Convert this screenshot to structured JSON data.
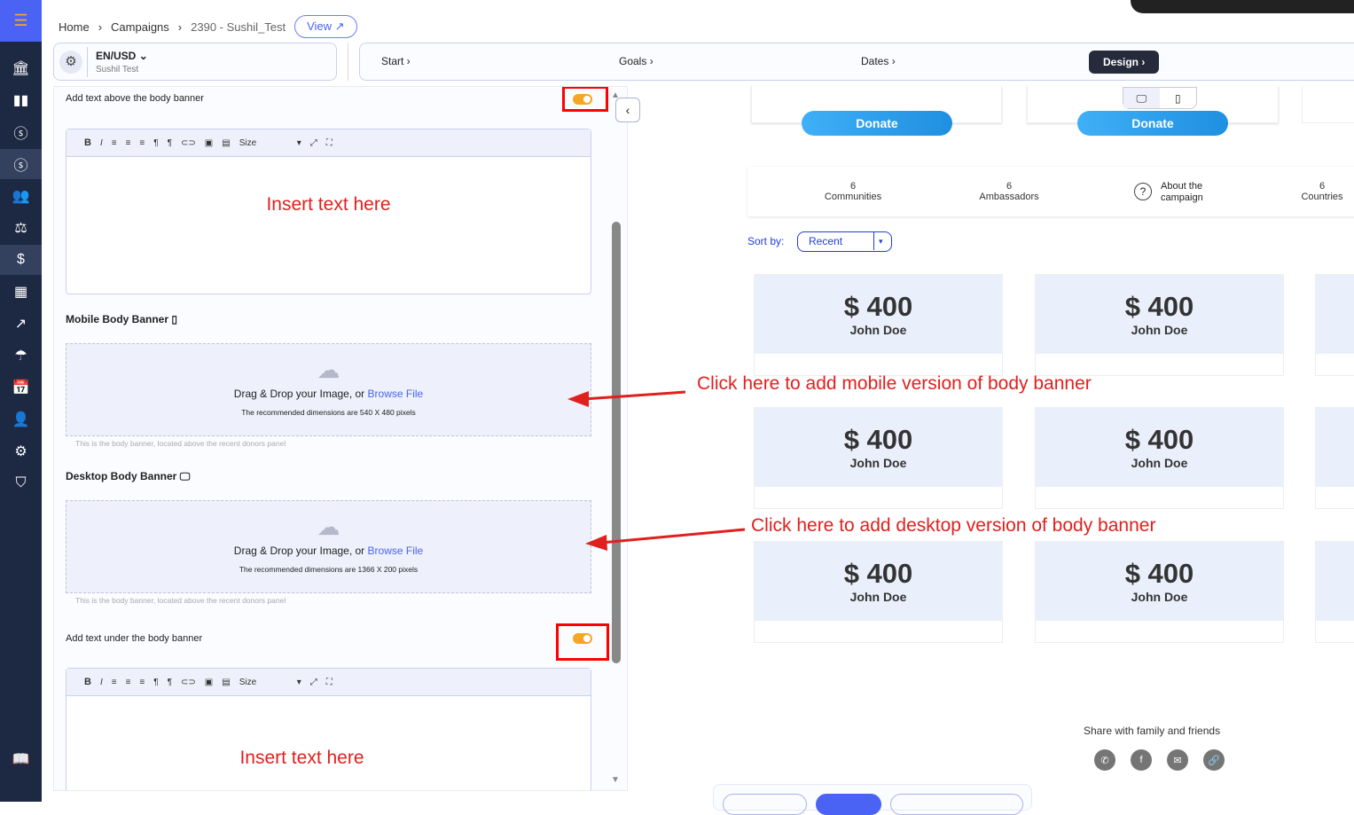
{
  "sidebar": {
    "items": [
      "bank-icon",
      "chart-icon",
      "dollar-circle-icon",
      "dollar-circle-icon",
      "users-icon",
      "scale-icon",
      "dollar-icon",
      "grid-icon",
      "arrow-icon",
      "umbrella-icon",
      "calendar-icon",
      "user-icon",
      "gear-icon",
      "plug-icon"
    ],
    "bottom": "book-icon"
  },
  "breadcrumb": {
    "home": "Home",
    "campaigns": "Campaigns",
    "campaign": "2390  -  Sushil_Test",
    "view": "View"
  },
  "lang": {
    "value": "EN/USD",
    "org": "Sushil Test"
  },
  "steps": [
    "Start",
    "Goals",
    "Dates",
    "Design"
  ],
  "panel": {
    "above_label": "Add text above the body banner",
    "under_label": "Add text under the body banner",
    "toolbar_size": "Size",
    "insert_text": "Insert text here",
    "mobile_label": "Mobile Body Banner",
    "desktop_label": "Desktop Body Banner",
    "drop_text": "Drag & Drop your Image, or ",
    "browse": "Browse File",
    "mobile_dims": "The recommended dimensions are 540 X 480 pixels",
    "desktop_dims": "The recommended dimensions are 1366 X 200 pixels",
    "hint": "This is the body banner, located above the recent donors panel"
  },
  "toggles": {
    "above": true,
    "under": true,
    "color": "#f5a623"
  },
  "preview": {
    "donate": "Donate",
    "stats": [
      {
        "n": "6",
        "l": "Communities"
      },
      {
        "n": "6",
        "l": "Ambassadors"
      },
      {
        "n": "",
        "l": "About the campaign"
      },
      {
        "n": "6",
        "l": "Countries"
      }
    ],
    "sort_label": "Sort by:",
    "sort_value": "Recent",
    "donors": [
      {
        "amount": "$ 400",
        "name": "John Doe"
      },
      {
        "amount": "$ 400",
        "name": "John Doe"
      },
      {
        "amount": "$ 400",
        "name": "John Doe"
      },
      {
        "amount": "$ 400",
        "name": "John Doe"
      },
      {
        "amount": "$ 400",
        "name": "John Doe"
      },
      {
        "amount": "$ 400",
        "name": "John Doe"
      }
    ],
    "share_title": "Share with family and friends"
  },
  "annotations": {
    "mobile": "Click here to add mobile version of body banner",
    "desktop": "Click here to add desktop version of body banner"
  }
}
